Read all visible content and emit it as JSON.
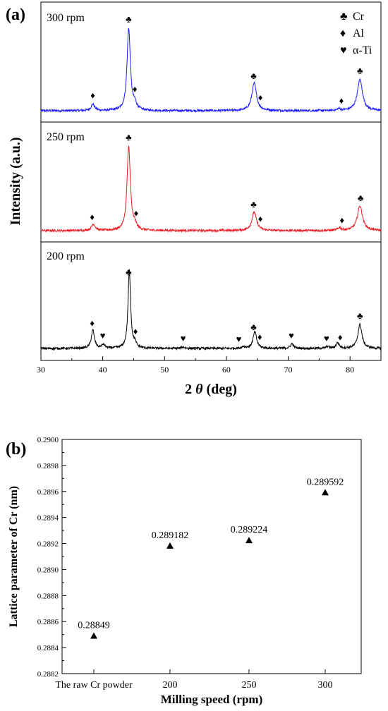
{
  "colors": {
    "300": "#1a1aff",
    "250": "#ee1c24",
    "200": "#000000"
  },
  "chart_data": [
    {
      "type": "line",
      "panel_label": "(a)",
      "xlabel": "2 θ (deg)",
      "xlabel_parts": {
        "prefix": "2 ",
        "symbol": "θ",
        "suffix": " (deg)"
      },
      "ylabel": "Intensity (a.u.)",
      "xlim": [
        30,
        85
      ],
      "x_ticks": [
        30,
        40,
        50,
        60,
        70,
        80
      ],
      "legend": [
        {
          "symbol": "♣",
          "label": "Cr"
        },
        {
          "symbol": "♦",
          "label": "Al"
        },
        {
          "symbol": "♥",
          "label": "α-Ti"
        }
      ],
      "legend_position": "top-right",
      "series": [
        {
          "name": "300 rpm",
          "color_key": "300",
          "peaks": [
            {
              "x": 38.4,
              "height": 0.07,
              "width": 0.35
            },
            {
              "x": 44.2,
              "height": 0.9,
              "width": 0.32
            },
            {
              "x": 45.2,
              "height": 0.06,
              "width": 0.3
            },
            {
              "x": 64.5,
              "height": 0.3,
              "width": 0.45
            },
            {
              "x": 78.2,
              "height": 0.02,
              "width": 0.3
            },
            {
              "x": 81.6,
              "height": 0.34,
              "width": 0.5
            }
          ],
          "markers": [
            {
              "symbol": "♦",
              "x": 38.4
            },
            {
              "symbol": "♣",
              "x": 44.2
            },
            {
              "symbol": "♦",
              "x": 45.2
            },
            {
              "symbol": "♣",
              "x": 64.4
            },
            {
              "symbol": "♦",
              "x": 65.5
            },
            {
              "symbol": "♦",
              "x": 78.6
            },
            {
              "symbol": "♣",
              "x": 81.6
            }
          ]
        },
        {
          "name": "250 rpm",
          "color_key": "250",
          "peaks": [
            {
              "x": 38.5,
              "height": 0.07,
              "width": 0.35
            },
            {
              "x": 44.2,
              "height": 0.92,
              "width": 0.32
            },
            {
              "x": 45.2,
              "height": 0.05,
              "width": 0.3
            },
            {
              "x": 64.5,
              "height": 0.2,
              "width": 0.45
            },
            {
              "x": 78.3,
              "height": 0.03,
              "width": 0.3
            },
            {
              "x": 81.6,
              "height": 0.27,
              "width": 0.5
            }
          ],
          "markers": [
            {
              "symbol": "♦",
              "x": 38.3
            },
            {
              "symbol": "♣",
              "x": 44.2
            },
            {
              "symbol": "♦",
              "x": 45.4
            },
            {
              "symbol": "♣",
              "x": 64.4
            },
            {
              "symbol": "♦",
              "x": 65.5
            },
            {
              "symbol": "♦",
              "x": 78.7
            },
            {
              "symbol": "♣",
              "x": 81.7
            }
          ]
        },
        {
          "name": "200 rpm",
          "color_key": "200",
          "peaks": [
            {
              "x": 38.4,
              "height": 0.2,
              "width": 0.3
            },
            {
              "x": 40.1,
              "height": 0.04,
              "width": 0.3
            },
            {
              "x": 44.3,
              "height": 0.85,
              "width": 0.25
            },
            {
              "x": 45.2,
              "height": 0.05,
              "width": 0.25
            },
            {
              "x": 53.0,
              "height": 0.015,
              "width": 0.3
            },
            {
              "x": 62.8,
              "height": 0.02,
              "width": 0.3
            },
            {
              "x": 64.6,
              "height": 0.18,
              "width": 0.35
            },
            {
              "x": 70.6,
              "height": 0.05,
              "width": 0.3
            },
            {
              "x": 76.4,
              "height": 0.02,
              "width": 0.3
            },
            {
              "x": 78.0,
              "height": 0.06,
              "width": 0.3
            },
            {
              "x": 81.6,
              "height": 0.26,
              "width": 0.4
            }
          ],
          "markers": [
            {
              "symbol": "♦",
              "x": 38.3
            },
            {
              "symbol": "♥",
              "x": 40.0
            },
            {
              "symbol": "♣",
              "x": 44.2
            },
            {
              "symbol": "♦",
              "x": 45.3
            },
            {
              "symbol": "♥",
              "x": 53.0
            },
            {
              "symbol": "♥",
              "x": 62.0
            },
            {
              "symbol": "♣",
              "x": 64.4
            },
            {
              "symbol": "♦",
              "x": 65.4
            },
            {
              "symbol": "♥",
              "x": 70.5
            },
            {
              "symbol": "♥",
              "x": 76.2
            },
            {
              "symbol": "♦",
              "x": 78.4
            },
            {
              "symbol": "♣",
              "x": 81.6
            }
          ]
        }
      ]
    },
    {
      "type": "scatter",
      "panel_label": "(b)",
      "xlabel": "Milling speed (rpm)",
      "ylabel": "Lattice parameter of Cr (nm)",
      "categories": [
        "The raw Cr powder",
        "200",
        "250",
        "300"
      ],
      "values": [
        0.28849,
        0.289182,
        0.289224,
        0.289592
      ],
      "data_labels": [
        "0.28849",
        "0.289182",
        "0.289224",
        "0.289592"
      ],
      "ylim": [
        0.2882,
        0.29
      ],
      "y_ticks": [
        0.2882,
        0.2884,
        0.2886,
        0.2888,
        0.289,
        0.2892,
        0.2894,
        0.2896,
        0.2898,
        0.29
      ],
      "y_tick_labels": [
        "0.2882",
        "0.2884",
        "0.2886",
        "0.2888",
        "0.2890",
        "0.2892",
        "0.2894",
        "0.2896",
        "0.2898",
        "0.2900"
      ],
      "marker": "triangle"
    }
  ]
}
